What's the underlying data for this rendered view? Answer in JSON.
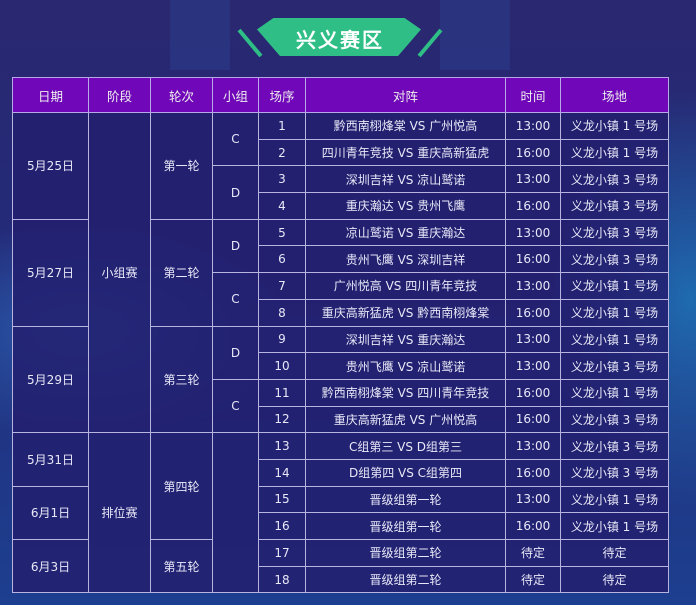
{
  "title": "兴义赛区",
  "headers": [
    "日期",
    "阶段",
    "轮次",
    "小组",
    "场序",
    "对阵",
    "时间",
    "场地"
  ],
  "dates": [
    {
      "label": "5月25日",
      "span": 4
    },
    {
      "label": "5月27日",
      "span": 4
    },
    {
      "label": "5月29日",
      "span": 4
    },
    {
      "label": "5月31日",
      "span": 2
    },
    {
      "label": "6月1日",
      "span": 2
    },
    {
      "label": "6月3日",
      "span": 2
    }
  ],
  "stages": [
    {
      "label": "小组赛",
      "span": 12
    },
    {
      "label": "排位赛",
      "span": 6
    }
  ],
  "rounds": [
    {
      "label": "第一轮",
      "span": 4
    },
    {
      "label": "第二轮",
      "span": 4
    },
    {
      "label": "第三轮",
      "span": 4
    },
    {
      "label": "第四轮",
      "span": 4
    },
    {
      "label": "第五轮",
      "span": 2
    }
  ],
  "groups": [
    {
      "label": "C",
      "span": 2
    },
    {
      "label": "D",
      "span": 2
    },
    {
      "label": "D",
      "span": 2
    },
    {
      "label": "C",
      "span": 2
    },
    {
      "label": "D",
      "span": 2
    },
    {
      "label": "C",
      "span": 2
    },
    {
      "label": "",
      "span": 6
    }
  ],
  "matches": [
    {
      "no": "1",
      "match": "黔西南栩烽棠 VS 广州悦高",
      "time": "13:00",
      "venue": "义龙小镇 1 号场"
    },
    {
      "no": "2",
      "match": "四川青年竞技 VS 重庆高新猛虎",
      "time": "16:00",
      "venue": "义龙小镇 1 号场"
    },
    {
      "no": "3",
      "match": "深圳吉祥 VS 凉山鹫诺",
      "time": "13:00",
      "venue": "义龙小镇 3 号场"
    },
    {
      "no": "4",
      "match": "重庆瀚达 VS 贵州飞鹰",
      "time": "16:00",
      "venue": "义龙小镇 3 号场"
    },
    {
      "no": "5",
      "match": "凉山鹫诺 VS 重庆瀚达",
      "time": "13:00",
      "venue": "义龙小镇 3 号场"
    },
    {
      "no": "6",
      "match": "贵州飞鹰 VS 深圳吉祥",
      "time": "16:00",
      "venue": "义龙小镇 3 号场"
    },
    {
      "no": "7",
      "match": "广州悦高 VS 四川青年竞技",
      "time": "13:00",
      "venue": "义龙小镇 1 号场"
    },
    {
      "no": "8",
      "match": "重庆高新猛虎 VS 黔西南栩烽棠",
      "time": "16:00",
      "venue": "义龙小镇 1 号场"
    },
    {
      "no": "9",
      "match": "深圳吉祥 VS 重庆瀚达",
      "time": "13:00",
      "venue": "义龙小镇 1 号场"
    },
    {
      "no": "10",
      "match": "贵州飞鹰 VS 凉山鹫诺",
      "time": "13:00",
      "venue": "义龙小镇 3 号场"
    },
    {
      "no": "11",
      "match": "黔西南栩烽棠 VS 四川青年竞技",
      "time": "16:00",
      "venue": "义龙小镇 1 号场"
    },
    {
      "no": "12",
      "match": "重庆高新猛虎 VS 广州悦高",
      "time": "16:00",
      "venue": "义龙小镇 3 号场"
    },
    {
      "no": "13",
      "match": "C组第三 VS D组第三",
      "time": "13:00",
      "venue": "义龙小镇 3 号场"
    },
    {
      "no": "14",
      "match": "D组第四 VS C组第四",
      "time": "16:00",
      "venue": "义龙小镇 3 号场"
    },
    {
      "no": "15",
      "match": "晋级组第一轮",
      "time": "13:00",
      "venue": "义龙小镇 1 号场"
    },
    {
      "no": "16",
      "match": "晋级组第一轮",
      "time": "16:00",
      "venue": "义龙小镇 1 号场"
    },
    {
      "no": "17",
      "match": "晋级组第二轮",
      "time": "待定",
      "venue": "待定"
    },
    {
      "no": "18",
      "match": "晋级组第二轮",
      "time": "待定",
      "venue": "待定"
    }
  ]
}
